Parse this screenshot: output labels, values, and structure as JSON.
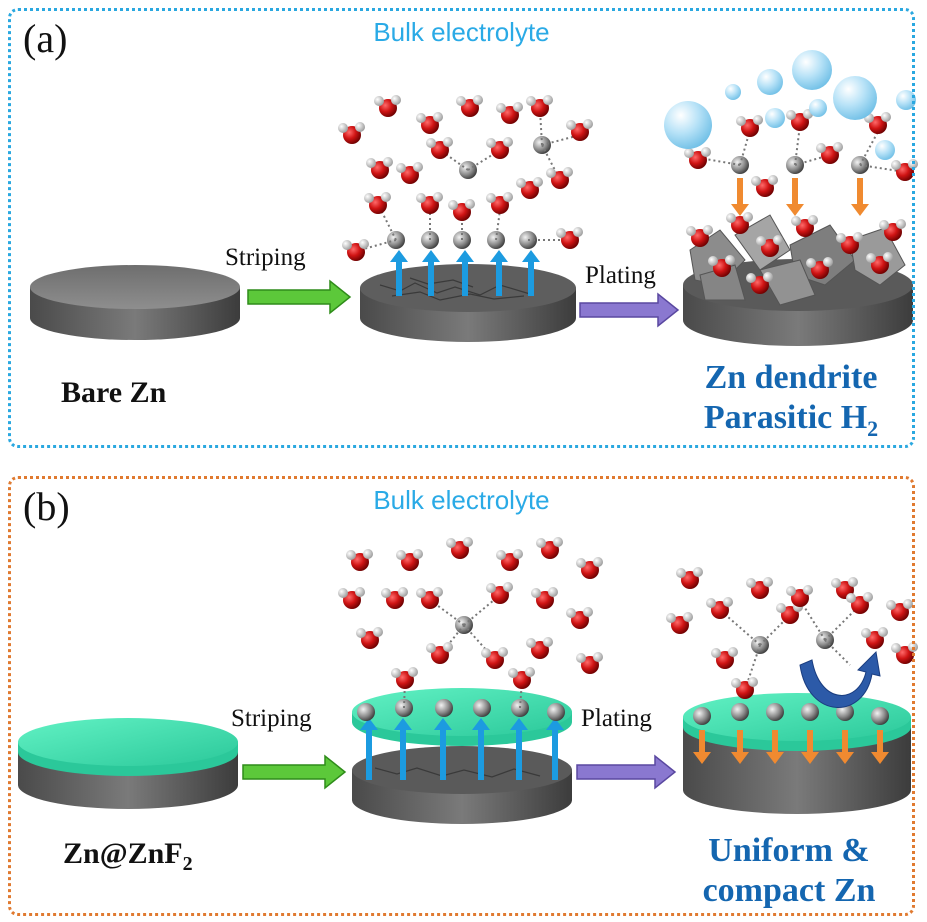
{
  "panel_a": {
    "label": "(a)",
    "bulk_label": "Bulk electrolyte",
    "step1": "Striping",
    "step2": "Plating",
    "electrode_name": "Bare Zn",
    "outcome_line1": "Zn dendrite",
    "outcome_line2_main": "Parasitic H",
    "outcome_line2_sub": "2"
  },
  "panel_b": {
    "label": "(b)",
    "bulk_label": "Bulk electrolyte",
    "step1": "Striping",
    "step2": "Plating",
    "electrode_name_main": "Zn@ZnF",
    "electrode_name_sub": "2",
    "outcome_line1": "Uniform &",
    "outcome_line2": "compact Zn"
  },
  "colors": {
    "panel_a_border": "#2aa8e0",
    "panel_b_border": "#e07a30",
    "title_blue": "#1466b0",
    "bulk_cyan": "#2aaae6",
    "zn_gray": "#6b6b6b",
    "znf2_green": "#3fe0b0",
    "oxygen_red": "#cc1010",
    "arrow_green": "#5cc83a",
    "arrow_purple": "#8a78d0",
    "arrow_orange": "#f08a30",
    "arrow_blue": "#1c9be0",
    "bubble_blue": "#a9dcf5"
  }
}
